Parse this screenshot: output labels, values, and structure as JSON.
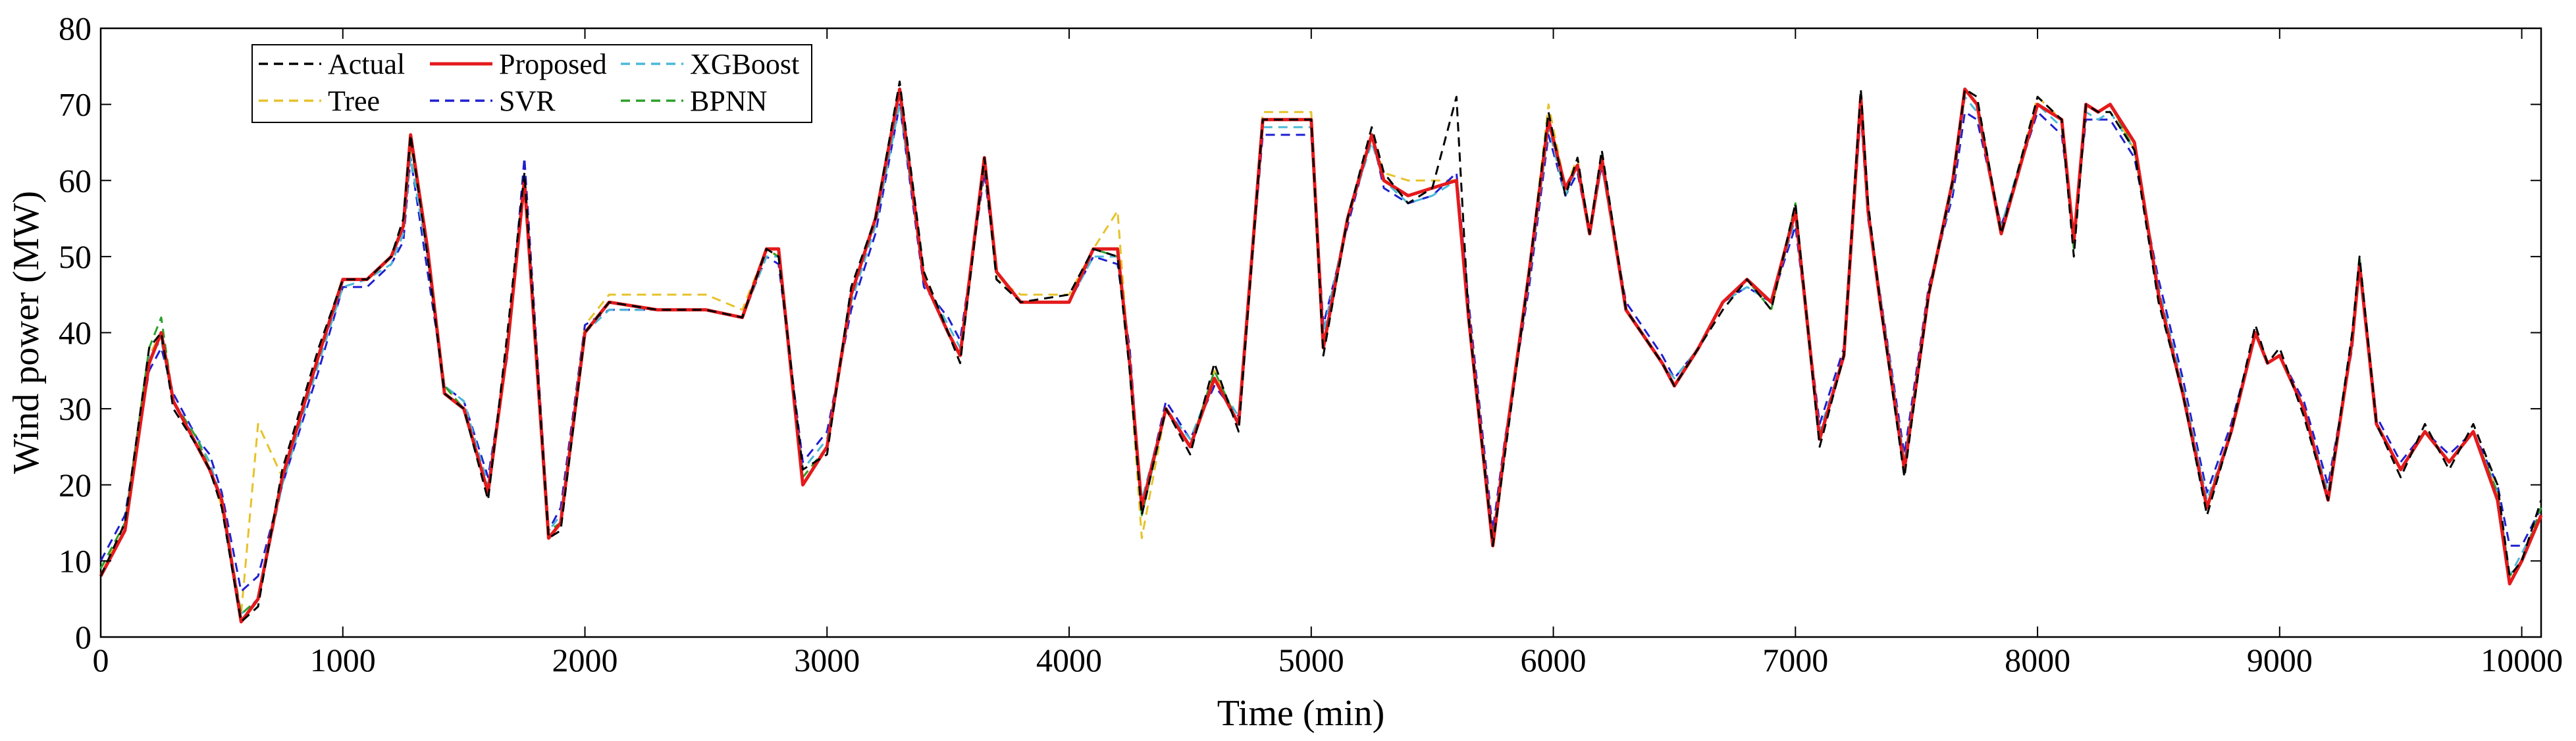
{
  "chart_data": {
    "type": "line",
    "title": "",
    "xlabel": "Time (min)",
    "ylabel": "Wind power (MW)",
    "xlim": [
      0,
      10080
    ],
    "ylim": [
      0,
      80
    ],
    "xticks": [
      0,
      1000,
      2000,
      3000,
      4000,
      5000,
      6000,
      7000,
      8000,
      9000,
      10000
    ],
    "yticks": [
      0,
      10,
      20,
      30,
      40,
      50,
      60,
      70,
      80
    ],
    "grid": false,
    "legend_position": "top-left",
    "x": [
      0,
      100,
      200,
      250,
      300,
      400,
      450,
      500,
      580,
      650,
      750,
      900,
      1000,
      1100,
      1200,
      1250,
      1280,
      1350,
      1420,
      1500,
      1600,
      1680,
      1750,
      1850,
      1900,
      2000,
      2100,
      2300,
      2500,
      2650,
      2750,
      2800,
      2900,
      3000,
      3100,
      3200,
      3300,
      3400,
      3500,
      3550,
      3650,
      3700,
      3800,
      4000,
      4100,
      4200,
      4250,
      4300,
      4400,
      4500,
      4600,
      4700,
      4800,
      5000,
      5050,
      5150,
      5250,
      5300,
      5400,
      5500,
      5600,
      5650,
      5750,
      5800,
      5900,
      5980,
      6050,
      6100,
      6150,
      6200,
      6300,
      6450,
      6500,
      6600,
      6700,
      6800,
      6900,
      7000,
      7100,
      7200,
      7270,
      7300,
      7350,
      7450,
      7550,
      7650,
      7700,
      7750,
      7850,
      8000,
      8100,
      8150,
      8200,
      8250,
      8300,
      8400,
      8500,
      8600,
      8700,
      8800,
      8900,
      8950,
      9000,
      9100,
      9200,
      9300,
      9330,
      9400,
      9500,
      9600,
      9700,
      9800,
      9900,
      9950,
      10000,
      10080
    ],
    "series": [
      {
        "name": "Actual",
        "color": "#000000",
        "dash": "dashed",
        "values": [
          8,
          15,
          38,
          40,
          30,
          25,
          22,
          17,
          2,
          4,
          22,
          38,
          47,
          47,
          50,
          55,
          66,
          50,
          32,
          30,
          18,
          40,
          61,
          13,
          14,
          40,
          44,
          43,
          43,
          42,
          51,
          50,
          22,
          24,
          46,
          55,
          73,
          48,
          40,
          36,
          63,
          47,
          44,
          45,
          51,
          50,
          35,
          16,
          30,
          24,
          36,
          27,
          68,
          68,
          37,
          55,
          67,
          61,
          57,
          59,
          71,
          42,
          12,
          24,
          48,
          69,
          58,
          63,
          53,
          64,
          43,
          36,
          33,
          38,
          43,
          47,
          43,
          57,
          25,
          37,
          72,
          57,
          44,
          21,
          45,
          60,
          72,
          71,
          53,
          71,
          68,
          50,
          70,
          69,
          69,
          64,
          44,
          32,
          16,
          27,
          41,
          36,
          38,
          29,
          18,
          40,
          50,
          28,
          21,
          28,
          22,
          28,
          20,
          8,
          10,
          18
        ]
      },
      {
        "name": "Proposed",
        "color": "#e41a1c",
        "dash": "solid",
        "values": [
          8,
          14,
          36,
          40,
          31,
          25,
          22,
          18,
          2,
          5,
          21,
          37,
          47,
          47,
          50,
          54,
          66,
          51,
          32,
          30,
          19,
          38,
          60,
          13,
          15,
          40,
          44,
          43,
          43,
          42,
          51,
          51,
          20,
          25,
          45,
          55,
          72,
          47,
          40,
          37,
          63,
          48,
          44,
          44,
          51,
          51,
          36,
          17,
          30,
          25,
          34,
          28,
          68,
          68,
          38,
          55,
          66,
          60,
          58,
          59,
          60,
          42,
          12,
          25,
          48,
          68,
          59,
          62,
          53,
          63,
          43,
          36,
          33,
          38,
          44,
          47,
          44,
          56,
          26,
          37,
          71,
          56,
          44,
          22,
          45,
          60,
          72,
          70,
          53,
          70,
          68,
          52,
          70,
          69,
          70,
          65,
          45,
          32,
          17,
          27,
          40,
          36,
          37,
          30,
          18,
          39,
          49,
          28,
          22,
          27,
          23,
          27,
          18,
          7,
          10,
          16
        ]
      },
      {
        "name": "XGBoost",
        "color": "#4ab8d8",
        "dash": "dashed",
        "values": [
          9,
          15,
          37,
          39,
          31,
          26,
          23,
          18,
          3,
          5,
          20,
          36,
          46,
          47,
          49,
          53,
          63,
          50,
          33,
          31,
          20,
          38,
          59,
          14,
          16,
          40,
          43,
          43,
          43,
          42,
          50,
          50,
          22,
          26,
          44,
          54,
          70,
          47,
          41,
          38,
          62,
          48,
          44,
          44,
          50,
          50,
          37,
          18,
          30,
          26,
          34,
          29,
          67,
          67,
          40,
          55,
          65,
          60,
          57,
          58,
          60,
          43,
          13,
          25,
          47,
          67,
          58,
          62,
          53,
          62,
          43,
          36,
          34,
          38,
          44,
          46,
          44,
          55,
          27,
          37,
          70,
          56,
          45,
          23,
          45,
          59,
          71,
          69,
          54,
          70,
          67,
          52,
          69,
          68,
          69,
          64,
          46,
          33,
          18,
          27,
          40,
          36,
          37,
          30,
          19,
          39,
          48,
          28,
          22,
          27,
          23,
          27,
          19,
          8,
          11,
          16
        ]
      },
      {
        "name": "Tree",
        "color": "#e6c229",
        "dash": "dashed",
        "values": [
          9,
          14,
          37,
          40,
          31,
          25,
          23,
          17,
          3,
          28,
          21,
          37,
          47,
          47,
          50,
          54,
          65,
          50,
          33,
          30,
          19,
          39,
          60,
          14,
          15,
          41,
          45,
          45,
          45,
          43,
          51,
          50,
          21,
          25,
          45,
          55,
          72,
          48,
          40,
          37,
          63,
          47,
          45,
          45,
          51,
          56,
          35,
          13,
          30,
          25,
          35,
          28,
          69,
          69,
          38,
          55,
          66,
          61,
          60,
          60,
          60,
          43,
          12,
          25,
          48,
          70,
          59,
          63,
          53,
          63,
          43,
          36,
          33,
          38,
          44,
          47,
          43,
          56,
          26,
          37,
          71,
          56,
          44,
          22,
          45,
          60,
          72,
          70,
          53,
          71,
          68,
          51,
          70,
          69,
          70,
          64,
          45,
          32,
          17,
          27,
          40,
          36,
          37,
          30,
          18,
          39,
          49,
          28,
          22,
          27,
          23,
          27,
          19,
          7,
          10,
          16
        ]
      },
      {
        "name": "SVR",
        "color": "#1f1fd1",
        "dash": "dashed",
        "values": [
          10,
          16,
          35,
          38,
          32,
          26,
          24,
          19,
          6,
          8,
          20,
          35,
          46,
          46,
          49,
          52,
          63,
          48,
          33,
          31,
          21,
          37,
          63,
          14,
          17,
          41,
          43,
          43,
          43,
          42,
          50,
          49,
          23,
          27,
          43,
          53,
          70,
          46,
          42,
          39,
          61,
          48,
          44,
          44,
          50,
          49,
          38,
          17,
          31,
          26,
          33,
          29,
          66,
          66,
          41,
          54,
          66,
          59,
          57,
          58,
          61,
          44,
          14,
          26,
          46,
          66,
          58,
          61,
          53,
          62,
          44,
          37,
          34,
          38,
          44,
          46,
          44,
          54,
          28,
          38,
          69,
          55,
          45,
          24,
          46,
          58,
          69,
          68,
          54,
          69,
          66,
          53,
          68,
          68,
          68,
          63,
          47,
          34,
          19,
          28,
          40,
          36,
          37,
          31,
          20,
          38,
          49,
          29,
          23,
          27,
          24,
          27,
          20,
          12,
          12,
          17
        ]
      },
      {
        "name": "BPNN",
        "color": "#2ca02c",
        "dash": "dashed",
        "values": [
          9,
          15,
          38,
          42,
          31,
          26,
          22,
          18,
          3,
          5,
          21,
          37,
          47,
          47,
          50,
          54,
          65,
          51,
          33,
          30,
          19,
          39,
          60,
          14,
          15,
          40,
          44,
          43,
          43,
          42,
          51,
          50,
          21,
          25,
          45,
          55,
          72,
          47,
          40,
          37,
          62,
          47,
          44,
          44,
          51,
          50,
          36,
          16,
          30,
          25,
          35,
          28,
          68,
          68,
          38,
          55,
          66,
          60,
          58,
          59,
          60,
          42,
          13,
          25,
          48,
          68,
          59,
          62,
          53,
          63,
          43,
          36,
          33,
          38,
          44,
          47,
          43,
          57,
          26,
          37,
          71,
          56,
          44,
          22,
          45,
          60,
          72,
          70,
          53,
          70,
          68,
          51,
          70,
          69,
          70,
          64,
          45,
          32,
          17,
          27,
          40,
          36,
          37,
          30,
          18,
          39,
          50,
          28,
          22,
          27,
          23,
          27,
          19,
          8,
          10,
          17
        ]
      }
    ]
  }
}
